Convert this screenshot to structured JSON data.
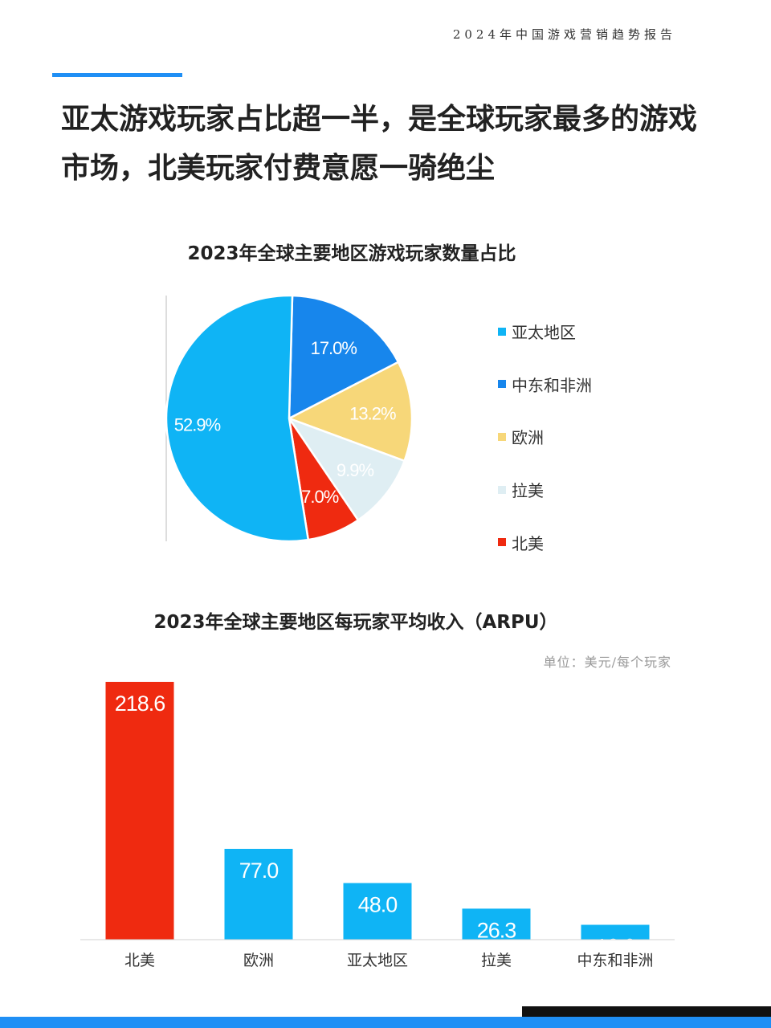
{
  "header": {
    "report_title": "2024年中国游戏营销趋势报告",
    "headline_line1": "亚太游戏玩家占比超一半，是全球玩家最多的游戏",
    "headline_line2": "市场，北美玩家付费意愿一骑绝尘"
  },
  "colors": {
    "accent": "#1f8ff5",
    "sky_blue": "#0fb4f5",
    "blue": "#1786ec",
    "yellow": "#f7d779",
    "light_blue": "#dfeef3",
    "red": "#ef2a10"
  },
  "pie_chart": {
    "title": "2023年全球主要地区游戏玩家数量占比"
  },
  "bar_chart": {
    "title": "2023年全球主要地区每玩家平均收入（ARPU）",
    "unit": "单位：美元/每个玩家"
  },
  "chart_data": [
    {
      "type": "pie",
      "title": "2023年全球主要地区游戏玩家数量占比",
      "legend_position": "right",
      "slices": [
        {
          "label": "亚太地区",
          "value": 52.9,
          "display": "52.9%",
          "color": "#0fb4f5"
        },
        {
          "label": "中东和非洲",
          "value": 17.0,
          "display": "17.0%",
          "color": "#1786ec"
        },
        {
          "label": "欧洲",
          "value": 13.2,
          "display": "13.2%",
          "color": "#f7d779"
        },
        {
          "label": "拉美",
          "value": 9.9,
          "display": "9.9%",
          "color": "#dfeef3"
        },
        {
          "label": "北美",
          "value": 7.0,
          "display": "7.0%",
          "color": "#ef2a10"
        }
      ]
    },
    {
      "type": "bar",
      "title": "2023年全球主要地区每玩家平均收入（ARPU）",
      "unit": "单位：美元/每个玩家",
      "categories": [
        "北美",
        "欧洲",
        "亚太地区",
        "拉美",
        "中东和非洲"
      ],
      "values": [
        218.6,
        77.0,
        48.0,
        26.3,
        12.6
      ],
      "value_labels": [
        "218.6",
        "77.0",
        "48.0",
        "26.3",
        "12.6"
      ],
      "colors": [
        "#ef2a10",
        "#0fb4f5",
        "#0fb4f5",
        "#0fb4f5",
        "#0fb4f5"
      ],
      "grid": false
    }
  ]
}
